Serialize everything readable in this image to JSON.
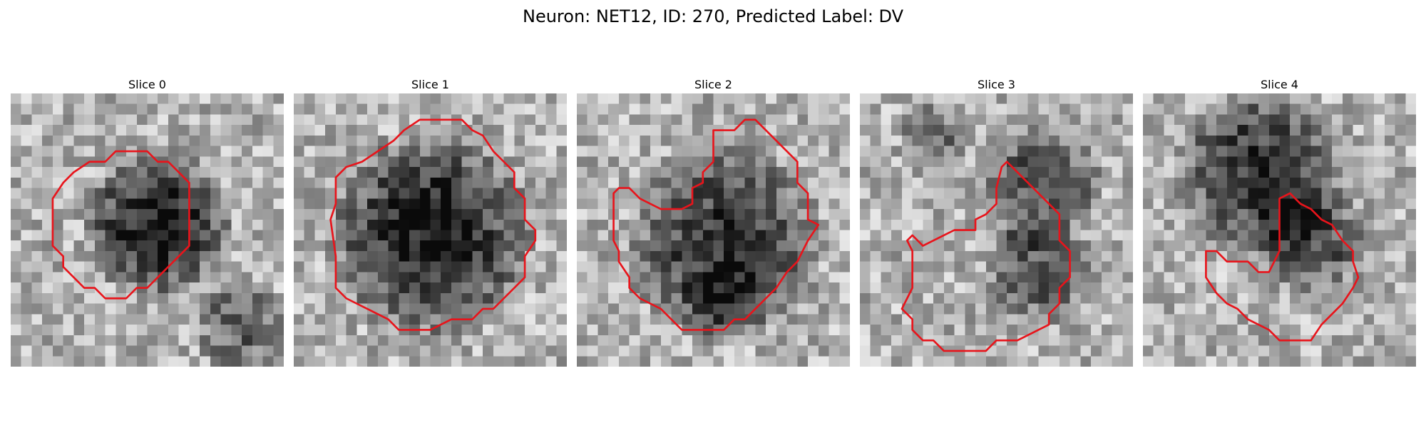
{
  "figure": {
    "title": "Neuron: NET12, ID: 270, Predicted Label: DV"
  },
  "outline_color": "#e8141b",
  "panels": [
    {
      "title": "Slice 0",
      "blobs": [
        {
          "cx": 14,
          "cy": 12.5,
          "r": 7.6,
          "strength": 0.62
        },
        {
          "cx": 22,
          "cy": 22,
          "r": 5,
          "strength": 0.34
        }
      ],
      "contour": [
        [
          7.5,
          6.5
        ],
        [
          9,
          6.5
        ],
        [
          10,
          5.5
        ],
        [
          13,
          5.5
        ],
        [
          14,
          6.5
        ],
        [
          15,
          6.5
        ],
        [
          16,
          7.5
        ],
        [
          17,
          8.5
        ],
        [
          17,
          10.5
        ],
        [
          17,
          12.5
        ],
        [
          17,
          14.5
        ],
        [
          16,
          15.5
        ],
        [
          15,
          16.5
        ],
        [
          14,
          17.5
        ],
        [
          13,
          18.5
        ],
        [
          12,
          18.5
        ],
        [
          11,
          19.5
        ],
        [
          9,
          19.5
        ],
        [
          8,
          18.5
        ],
        [
          7,
          18.5
        ],
        [
          6,
          17.5
        ],
        [
          5,
          16.5
        ],
        [
          5,
          15.5
        ],
        [
          4,
          14.5
        ],
        [
          4,
          11.5
        ],
        [
          4,
          10
        ],
        [
          5,
          8.5
        ],
        [
          6,
          7.5
        ]
      ]
    },
    {
      "title": "Slice 1",
      "blobs": [
        {
          "cx": 13,
          "cy": 13.5,
          "r": 10.5,
          "strength": 0.6
        }
      ],
      "contour": [
        [
          8,
          5.5
        ],
        [
          9.5,
          4.5
        ],
        [
          10.5,
          3.5
        ],
        [
          12,
          2.5
        ],
        [
          16,
          2.5
        ],
        [
          17,
          3.5
        ],
        [
          18,
          4
        ],
        [
          19,
          5.5
        ],
        [
          20,
          6.5
        ],
        [
          21,
          7.5
        ],
        [
          21,
          9
        ],
        [
          22,
          10
        ],
        [
          22,
          12
        ],
        [
          23,
          13
        ],
        [
          23,
          14
        ],
        [
          22,
          15.5
        ],
        [
          22,
          17.5
        ],
        [
          21,
          18.5
        ],
        [
          20,
          19.5
        ],
        [
          19,
          20.5
        ],
        [
          18,
          20.5
        ],
        [
          17,
          21.5
        ],
        [
          15,
          21.5
        ],
        [
          13,
          22.5
        ],
        [
          10,
          22.5
        ],
        [
          9,
          21.5
        ],
        [
          7,
          20.5
        ],
        [
          5,
          19.5
        ],
        [
          4,
          18.5
        ],
        [
          4,
          15.5
        ],
        [
          3.5,
          12
        ],
        [
          4,
          10.5
        ],
        [
          4,
          8
        ],
        [
          5,
          7
        ],
        [
          6.5,
          6.5
        ]
      ]
    },
    {
      "title": "Slice 2",
      "blobs": [
        {
          "cx": 14,
          "cy": 14,
          "r": 10,
          "strength": 0.5
        },
        {
          "cx": 14,
          "cy": 20,
          "r": 4.5,
          "strength": 0.28
        }
      ],
      "contour": [
        [
          13,
          3.5
        ],
        [
          15,
          3.5
        ],
        [
          16,
          2.5
        ],
        [
          17,
          2.5
        ],
        [
          18,
          3.5
        ],
        [
          19,
          4.5
        ],
        [
          20,
          5.5
        ],
        [
          21,
          6.5
        ],
        [
          21,
          8.5
        ],
        [
          22,
          9.5
        ],
        [
          22,
          12
        ],
        [
          23,
          12.5
        ],
        [
          22,
          14
        ],
        [
          21,
          16
        ],
        [
          20,
          17
        ],
        [
          19,
          18.5
        ],
        [
          18,
          19.5
        ],
        [
          17,
          20.5
        ],
        [
          16,
          21.5
        ],
        [
          15,
          21.5
        ],
        [
          14,
          22.5
        ],
        [
          10,
          22.5
        ],
        [
          9,
          21.5
        ],
        [
          8,
          20.5
        ],
        [
          6,
          19.5
        ],
        [
          5,
          18.5
        ],
        [
          5,
          17.5
        ],
        [
          4,
          16
        ],
        [
          4,
          15
        ],
        [
          3.5,
          14
        ],
        [
          3.5,
          9.5
        ],
        [
          4,
          9
        ],
        [
          5,
          9
        ],
        [
          6,
          10
        ],
        [
          7,
          10.5
        ],
        [
          8,
          11
        ],
        [
          9,
          11
        ],
        [
          10,
          11
        ],
        [
          11,
          10.5
        ],
        [
          11,
          9
        ],
        [
          12,
          8.5
        ],
        [
          12,
          7.5
        ],
        [
          13,
          6.5
        ],
        [
          13,
          5
        ]
      ]
    },
    {
      "title": "Slice 3",
      "blobs": [
        {
          "cx": 17,
          "cy": 9,
          "r": 6.5,
          "strength": 0.4
        },
        {
          "cx": 17,
          "cy": 17,
          "r": 5.5,
          "strength": 0.38
        },
        {
          "cx": 7,
          "cy": 4,
          "r": 3.5,
          "strength": 0.3
        }
      ],
      "contour": [
        [
          14,
          6.5
        ],
        [
          15,
          7.5
        ],
        [
          16,
          8.5
        ],
        [
          17,
          9.5
        ],
        [
          18,
          10.5
        ],
        [
          19,
          11.5
        ],
        [
          19,
          14
        ],
        [
          20,
          15
        ],
        [
          20,
          17.5
        ],
        [
          19,
          18.5
        ],
        [
          19,
          20
        ],
        [
          18,
          21
        ],
        [
          18,
          22
        ],
        [
          17,
          22.5
        ],
        [
          16,
          23
        ],
        [
          15,
          23.5
        ],
        [
          13,
          23.5
        ],
        [
          12,
          24.5
        ],
        [
          10,
          24.5
        ],
        [
          8,
          24.5
        ],
        [
          7,
          23.5
        ],
        [
          6,
          23.5
        ],
        [
          5,
          22.5
        ],
        [
          5,
          21.5
        ],
        [
          4,
          20.5
        ],
        [
          4.5,
          19.5
        ],
        [
          5,
          18.5
        ],
        [
          5,
          17
        ],
        [
          5,
          15
        ],
        [
          4.5,
          14
        ],
        [
          5,
          13.5
        ],
        [
          6,
          14.5
        ],
        [
          7,
          14
        ],
        [
          8,
          13.5
        ],
        [
          9,
          13
        ],
        [
          11,
          13
        ],
        [
          11,
          12
        ],
        [
          12,
          11.5
        ],
        [
          13,
          10.5
        ],
        [
          13,
          9
        ],
        [
          13.5,
          7
        ]
      ]
    },
    {
      "title": "Slice 4",
      "blobs": [
        {
          "cx": 11,
          "cy": 7.5,
          "r": 8.5,
          "strength": 0.52
        },
        {
          "cx": 16,
          "cy": 14,
          "r": 6,
          "strength": 0.42
        }
      ],
      "contour": [
        [
          13,
          10
        ],
        [
          14,
          9.5
        ],
        [
          15,
          10.5
        ],
        [
          16,
          11
        ],
        [
          17,
          12
        ],
        [
          18,
          12.5
        ],
        [
          19,
          14
        ],
        [
          20,
          15
        ],
        [
          20,
          16
        ],
        [
          20.5,
          17.5
        ],
        [
          20,
          18.5
        ],
        [
          19,
          20
        ],
        [
          18,
          21
        ],
        [
          17,
          22
        ],
        [
          16,
          23.5
        ],
        [
          14,
          23.5
        ],
        [
          13,
          23.5
        ],
        [
          12,
          22.5
        ],
        [
          11,
          22
        ],
        [
          10,
          21.5
        ],
        [
          9,
          20.5
        ],
        [
          8,
          20
        ],
        [
          7,
          19
        ],
        [
          6,
          17.5
        ],
        [
          6,
          16
        ],
        [
          6,
          15
        ],
        [
          7,
          15
        ],
        [
          8,
          16
        ],
        [
          9,
          16
        ],
        [
          10,
          16
        ],
        [
          11,
          17
        ],
        [
          12,
          17
        ],
        [
          12.5,
          16
        ],
        [
          13,
          15
        ],
        [
          13,
          13
        ],
        [
          13,
          11.5
        ]
      ]
    }
  ]
}
